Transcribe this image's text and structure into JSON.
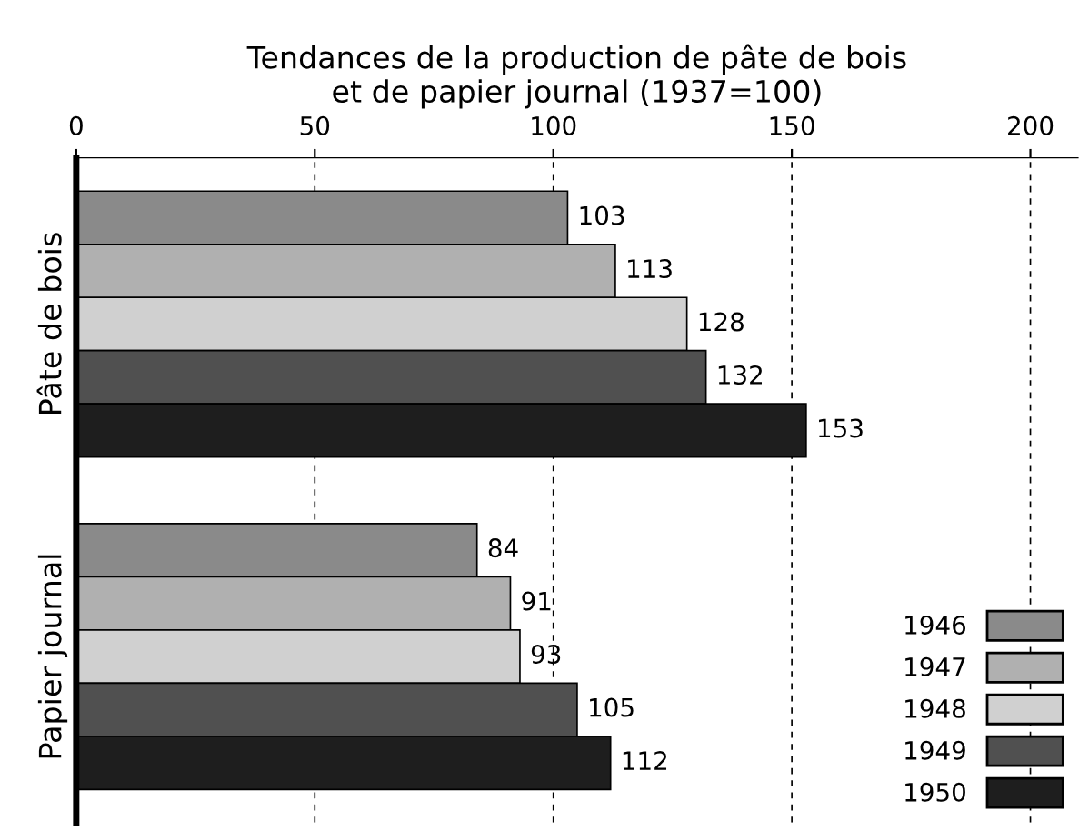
{
  "chart_data": {
    "type": "bar",
    "orientation": "horizontal",
    "title": "Tendances de la production de pâte de bois\net de papier journal (1937=100)",
    "categories": [
      "Pâte de bois",
      "Papier journal"
    ],
    "series": [
      {
        "name": "1946",
        "color": "#8a8a8a",
        "values": [
          103,
          84
        ]
      },
      {
        "name": "1947",
        "color": "#b0b0b0",
        "values": [
          113,
          91
        ]
      },
      {
        "name": "1948",
        "color": "#d0d0d0",
        "values": [
          128,
          93
        ]
      },
      {
        "name": "1949",
        "color": "#505050",
        "values": [
          132,
          105
        ]
      },
      {
        "name": "1950",
        "color": "#1e1e1e",
        "values": [
          153,
          112
        ]
      }
    ],
    "xlim": [
      0,
      210
    ],
    "xticks": [
      0,
      50,
      100,
      150,
      200
    ],
    "grid": "x",
    "legend": "bottom right",
    "data_labels": true
  }
}
